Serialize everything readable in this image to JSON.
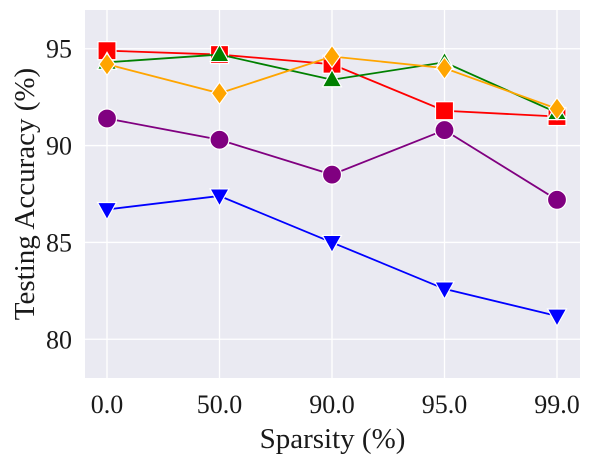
{
  "chart_data": {
    "type": "line",
    "title": "",
    "xlabel": "Sparsity (%)",
    "ylabel": "Testing Accuracy (%)",
    "categories": [
      "0.0",
      "50.0",
      "90.0",
      "95.0",
      "99.0"
    ],
    "ylim": [
      78,
      97
    ],
    "yticks": [
      80,
      85,
      90,
      95
    ],
    "grid": true,
    "legend": "none",
    "background_color": "#eaeaf2",
    "grid_color": "#ffffff",
    "series": [
      {
        "color": "#ff0000",
        "marker": "square",
        "values": [
          94.9,
          94.7,
          94.2,
          91.8,
          91.5
        ]
      },
      {
        "color": "#008000",
        "marker": "triangle-up",
        "values": [
          94.3,
          94.7,
          93.4,
          94.3,
          91.7
        ]
      },
      {
        "color": "#ffa500",
        "marker": "diamond",
        "values": [
          94.2,
          92.7,
          94.6,
          94.0,
          91.9
        ]
      },
      {
        "color": "#800080",
        "marker": "circle",
        "values": [
          91.4,
          90.3,
          88.5,
          90.8,
          87.2
        ]
      },
      {
        "color": "#0000ff",
        "marker": "triangle-down",
        "values": [
          86.7,
          87.4,
          85.0,
          82.6,
          81.2
        ]
      }
    ]
  }
}
